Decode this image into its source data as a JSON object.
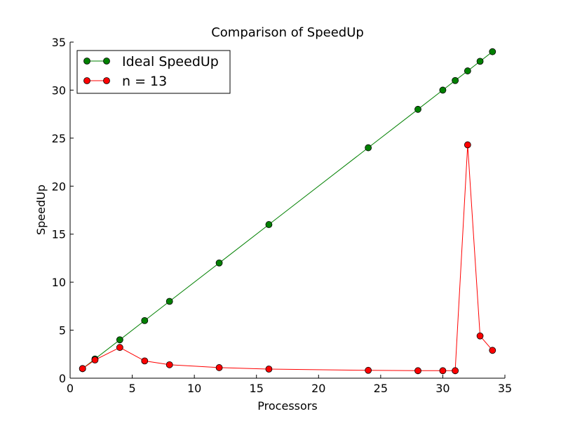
{
  "chart_data": {
    "type": "line",
    "title": "Comparison of SpeedUp",
    "xlabel": "Processors",
    "ylabel": "SpeedUp",
    "xlim": [
      0,
      35
    ],
    "ylim": [
      0,
      35
    ],
    "xticks": [
      0,
      5,
      10,
      15,
      20,
      25,
      30,
      35
    ],
    "yticks": [
      0,
      5,
      10,
      15,
      20,
      25,
      30,
      35
    ],
    "grid": false,
    "legend_position": "top-left",
    "series": [
      {
        "name": "Ideal SpeedUp",
        "color": "#008000",
        "x": [
          1,
          2,
          4,
          6,
          8,
          12,
          16,
          24,
          28,
          30,
          31,
          32,
          33,
          34
        ],
        "y": [
          1,
          2,
          4,
          6,
          8,
          12,
          16,
          24,
          28,
          30,
          31,
          32,
          33,
          34
        ]
      },
      {
        "name": "n = 13",
        "color": "#ff0000",
        "x": [
          1,
          2,
          4,
          6,
          8,
          12,
          16,
          24,
          28,
          30,
          31,
          32,
          33,
          34
        ],
        "y": [
          1.0,
          1.9,
          3.2,
          1.8,
          1.4,
          1.1,
          0.95,
          0.82,
          0.78,
          0.78,
          0.78,
          24.3,
          4.4,
          2.9
        ]
      }
    ]
  }
}
